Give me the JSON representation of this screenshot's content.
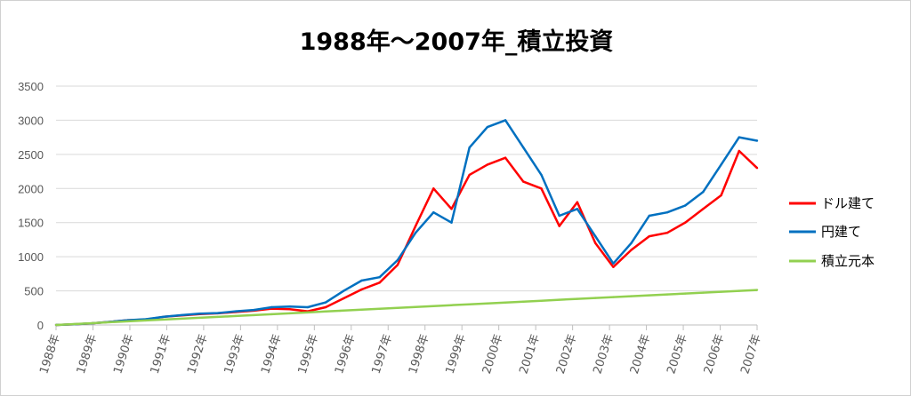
{
  "chart_data": {
    "type": "line",
    "title": "1988年～2007年_積立投資",
    "xlabel": "",
    "ylabel": "",
    "ylim": [
      0,
      3500
    ],
    "yticks": [
      "0",
      "500",
      "1000",
      "1500",
      "2000",
      "2500",
      "3000",
      "3500"
    ],
    "grid": true,
    "legend_position": "right",
    "x": [
      "1988年",
      "1988年",
      "1989年",
      "1989年",
      "1990年",
      "1990年",
      "1991年",
      "1991年",
      "1992年",
      "1992年",
      "1993年",
      "1993年",
      "1994年",
      "1994年",
      "1995年",
      "1995年",
      "1996年",
      "1996年",
      "1997年",
      "1997年",
      "1998年",
      "1998年",
      "1999年",
      "1999年",
      "2000年",
      "2000年",
      "2001年",
      "2001年",
      "2002年",
      "2002年",
      "2003年",
      "2003年",
      "2004年",
      "2004年",
      "2005年",
      "2005年",
      "2006年",
      "2006年",
      "2007年",
      "2007年"
    ],
    "x_tick_labels": [
      "1988年",
      "1989年",
      "1990年",
      "1991年",
      "1992年",
      "1993年",
      "1994年",
      "1995年",
      "1996年",
      "1997年",
      "1998年",
      "1999年",
      "2000年",
      "2001年",
      "2002年",
      "2003年",
      "2004年",
      "2005年",
      "2006年",
      "2007年"
    ],
    "series": [
      {
        "name": "ドル建て",
        "color": "#ff0000",
        "values": [
          0,
          10,
          25,
          45,
          70,
          80,
          120,
          140,
          160,
          170,
          190,
          210,
          240,
          230,
          200,
          260,
          390,
          520,
          620,
          880,
          1450,
          2000,
          1700,
          2200,
          2350,
          2450,
          2100,
          2000,
          1450,
          1800,
          1200,
          850,
          1100,
          1300,
          1350,
          1500,
          1700,
          1900,
          2550,
          2300
        ]
      },
      {
        "name": "円建て",
        "color": "#0070c0",
        "values": [
          0,
          10,
          25,
          45,
          70,
          85,
          120,
          145,
          165,
          175,
          200,
          220,
          260,
          270,
          260,
          330,
          500,
          650,
          700,
          950,
          1350,
          1650,
          1500,
          2600,
          2900,
          3000,
          2600,
          2200,
          1600,
          1700,
          1300,
          900,
          1200,
          1600,
          1650,
          1750,
          1950,
          2350,
          2750,
          2700
        ]
      },
      {
        "name": "積立元本",
        "color": "#92d050",
        "values": [
          0,
          13,
          26,
          40,
          53,
          66,
          79,
          92,
          105,
          119,
          132,
          145,
          158,
          171,
          184,
          198,
          211,
          224,
          237,
          250,
          263,
          276,
          290,
          303,
          316,
          329,
          342,
          355,
          369,
          382,
          395,
          408,
          421,
          434,
          448,
          461,
          474,
          487,
          500,
          513
        ]
      }
    ]
  }
}
